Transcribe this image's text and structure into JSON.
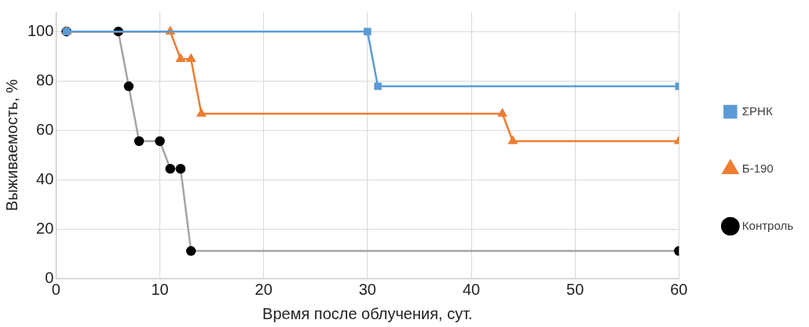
{
  "chart_data": {
    "type": "line",
    "xlabel": "Время после облучения, сут.",
    "ylabel": "Выживаемость, %",
    "xlim": [
      0,
      60
    ],
    "xticks": [
      0,
      10,
      20,
      30,
      40,
      50,
      60
    ],
    "ylim": [
      0,
      108
    ],
    "yticks": [
      0,
      20,
      40,
      60,
      80,
      100
    ],
    "grid": true,
    "legend": "right",
    "line_style": "solid",
    "series": [
      {
        "name": "ΣРНК",
        "color": "#5b9bd5",
        "marker": "square",
        "x": [
          1,
          30,
          31,
          60
        ],
        "values": [
          100,
          100,
          77.8,
          77.8
        ]
      },
      {
        "name": "Б-190",
        "color": "#ed7d31",
        "marker": "triangle",
        "x": [
          1,
          11,
          12,
          13,
          14,
          43,
          44,
          60
        ],
        "values": [
          100,
          100,
          88.9,
          88.9,
          66.7,
          66.7,
          55.6,
          55.6
        ]
      },
      {
        "name": "Контроль",
        "color": "#a5a5a5",
        "marker": "circle",
        "x": [
          1,
          6,
          7,
          8,
          10,
          11,
          12,
          13,
          60
        ],
        "values": [
          100,
          100,
          77.8,
          55.6,
          55.6,
          44.4,
          44.4,
          11.1,
          11.1
        ]
      }
    ]
  }
}
